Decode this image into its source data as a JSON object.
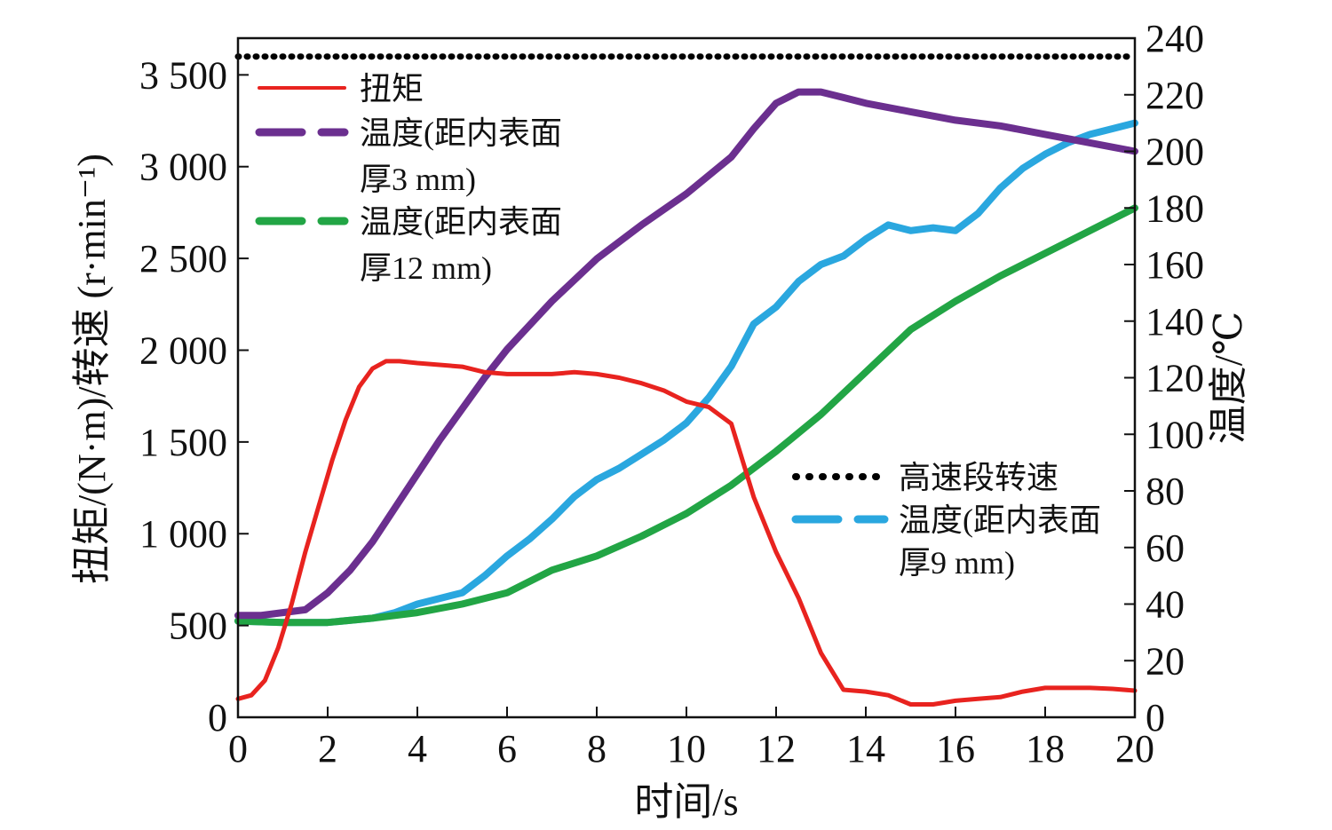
{
  "chart_data": {
    "type": "line",
    "xlabel": "时间/s",
    "ylabel_left": "扭矩/(N·m)/转速 (r·min⁻¹)",
    "ylabel_right": "温度/℃",
    "xlim": [
      0,
      20
    ],
    "ylim_left": [
      0,
      3700
    ],
    "ylim_right": [
      0,
      240
    ],
    "x_ticks": [
      0,
      2,
      4,
      6,
      8,
      10,
      12,
      14,
      16,
      18,
      20
    ],
    "y_left_ticks": [
      0,
      500,
      1000,
      1500,
      2000,
      2500,
      3000,
      3500
    ],
    "y_left_tick_labels": [
      "0",
      "500",
      "1 000",
      "1 500",
      "2 000",
      "2 500",
      "3 000",
      "3 500"
    ],
    "y_right_ticks": [
      0,
      20,
      40,
      60,
      80,
      100,
      120,
      140,
      160,
      180,
      200,
      220,
      240
    ],
    "y_right_tick_labels": [
      "0",
      "20",
      "40",
      "60",
      "80",
      "100",
      "120",
      "140",
      "160",
      "180",
      "200",
      "220",
      "240"
    ],
    "grid": false,
    "legend": [
      {
        "label": "扭矩",
        "color": "#e8231f",
        "style": "solid",
        "location": "top-left"
      },
      {
        "label_lines": [
          "温度(距内表面",
          "厚3 mm)"
        ],
        "color": "#6b2f8f",
        "style": "dashed",
        "location": "top-left"
      },
      {
        "label_lines": [
          "温度(距内表面",
          "厚12 mm)"
        ],
        "color": "#22a545",
        "style": "dashed",
        "location": "top-left"
      },
      {
        "label": "高速段转速",
        "color": "#000000",
        "style": "dotted",
        "location": "center-right"
      },
      {
        "label_lines": [
          "温度(距内表面",
          "厚9 mm)"
        ],
        "color": "#2aa7df",
        "style": "dashed",
        "location": "center-right"
      }
    ],
    "series": [
      {
        "name": "扭矩",
        "axis": "left",
        "color": "#e8231f",
        "style": "solid",
        "x": [
          0,
          0.3,
          0.6,
          0.9,
          1.2,
          1.5,
          1.8,
          2.1,
          2.4,
          2.7,
          3.0,
          3.3,
          3.6,
          4.0,
          5.0,
          5.5,
          6.0,
          7.0,
          7.5,
          8.0,
          8.5,
          9.0,
          9.5,
          10.0,
          10.5,
          11.0,
          11.5,
          12.0,
          12.5,
          13.0,
          13.5,
          14.0,
          14.5,
          15.0,
          15.5,
          16.0,
          16.5,
          17.0,
          17.5,
          18.0,
          18.5,
          19.0,
          19.5,
          20.0
        ],
        "y": [
          100,
          120,
          200,
          380,
          620,
          900,
          1150,
          1400,
          1620,
          1800,
          1900,
          1940,
          1940,
          1930,
          1910,
          1880,
          1870,
          1870,
          1880,
          1870,
          1850,
          1820,
          1780,
          1720,
          1690,
          1600,
          1200,
          900,
          650,
          350,
          150,
          140,
          120,
          70,
          70,
          90,
          100,
          110,
          140,
          160,
          160,
          160,
          155,
          145
        ]
      },
      {
        "name": "温度(距内表面厚3 mm)",
        "axis": "right",
        "color": "#6b2f8f",
        "style": "dashed",
        "x": [
          0,
          0.5,
          1.0,
          1.5,
          2.0,
          2.5,
          3.0,
          3.5,
          4.0,
          4.5,
          5.0,
          5.5,
          6.0,
          7.0,
          8.0,
          9.0,
          10.0,
          11.0,
          11.5,
          12.0,
          12.5,
          13.0,
          13.5,
          14.0,
          15.0,
          16.0,
          17.0,
          18.0,
          19.0,
          20.0
        ],
        "y": [
          36,
          36,
          37,
          38,
          44,
          52,
          62,
          74,
          86,
          98,
          109,
          120,
          130,
          147,
          162,
          174,
          185,
          198,
          208,
          217,
          221,
          221,
          219,
          217,
          214,
          211,
          209,
          206,
          203,
          200
        ]
      },
      {
        "name": "温度(距内表面厚12 mm)",
        "axis": "right",
        "color": "#22a545",
        "style": "dashed",
        "x": [
          0,
          1,
          2,
          3,
          4,
          5,
          6,
          7,
          8,
          9,
          10,
          11,
          12,
          13,
          14,
          15,
          16,
          17,
          18,
          19,
          20
        ],
        "y": [
          34,
          33.5,
          33.5,
          35,
          37,
          40,
          44,
          52,
          57,
          64,
          72,
          82,
          94,
          107,
          122,
          137,
          147,
          156,
          164,
          172,
          180
        ]
      },
      {
        "name": "高速段转速",
        "axis": "left",
        "color": "#000000",
        "style": "dotted",
        "x": [
          0,
          20
        ],
        "y": [
          3600,
          3600
        ]
      },
      {
        "name": "温度(距内表面厚9 mm)",
        "axis": "right",
        "color": "#2aa7df",
        "style": "dashed",
        "x": [
          0,
          1,
          2,
          3,
          3.5,
          4,
          4.5,
          5,
          5.5,
          6,
          6.5,
          7,
          7.5,
          8,
          8.5,
          9,
          9.5,
          10,
          10.5,
          11,
          11.5,
          12,
          12.5,
          13,
          13.5,
          14,
          14.5,
          15,
          15.5,
          16,
          16.5,
          17,
          17.5,
          18,
          18.5,
          19,
          19.5,
          20
        ],
        "y": [
          34,
          33.5,
          33.5,
          35,
          37,
          40,
          42,
          44,
          50,
          57,
          63,
          70,
          78,
          84,
          88,
          93,
          98,
          104,
          113,
          124,
          139,
          145,
          154,
          160,
          163,
          169,
          174,
          172,
          173,
          172,
          178,
          187,
          194,
          199,
          203,
          206,
          208,
          210
        ]
      }
    ]
  }
}
